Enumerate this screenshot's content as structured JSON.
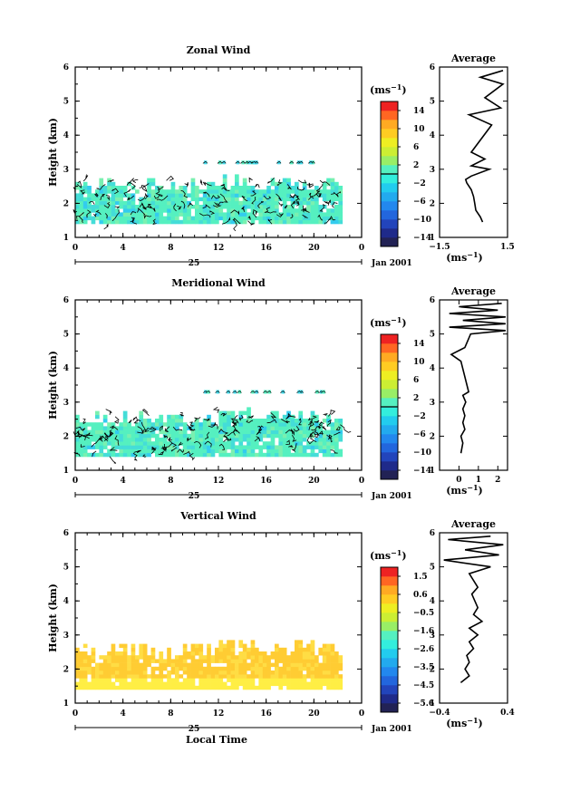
{
  "chart_data": [
    {
      "type": "heatmap",
      "title": "Zonal Wind",
      "ylabel": "Height (km)",
      "xlim": [
        0,
        24
      ],
      "ylim": [
        1,
        6
      ],
      "x_ticks": [
        "0",
        "4",
        "8",
        "12",
        "16",
        "20",
        "0"
      ],
      "y_ticks": [
        "1",
        "2",
        "3",
        "4",
        "5",
        "6"
      ],
      "date_center": "25",
      "date_right": "Jan 2001",
      "colorbar": {
        "unit": "(ms$^{-1}$)",
        "unit_text": "(ms",
        "unit_exp": "−1",
        "labels": [
          "14",
          "10",
          "6",
          "2",
          "−2",
          "−6",
          "−10",
          "−14"
        ],
        "range": [
          -16,
          16
        ],
        "zero_line": 0
      },
      "data_extent": {
        "x": [
          0,
          22.2
        ],
        "height": [
          1.4,
          2.6
        ]
      },
      "sparse_layer": {
        "x": [
          10.5,
          20.5
        ],
        "height": 3.2
      },
      "profile": {
        "title": "Average",
        "xlabel": "(ms$^{-1}$)",
        "xlim": [
          -1.5,
          1.5
        ],
        "x_ticks": [
          "−1.5",
          "1.5"
        ],
        "y_ticks": [
          "1",
          "2",
          "3",
          "4",
          "5",
          "6"
        ],
        "height": [
          1.45,
          1.6,
          1.8,
          2.0,
          2.2,
          2.4,
          2.6,
          2.7,
          2.8,
          3.0,
          3.1,
          3.3,
          3.5,
          4.3,
          4.6,
          4.8,
          5.1,
          5.5,
          5.7,
          5.9
        ],
        "value": [
          0.4,
          0.3,
          0.1,
          0.05,
          0.0,
          -0.1,
          -0.3,
          -0.35,
          -0.1,
          0.7,
          -0.1,
          0.5,
          -0.1,
          0.8,
          -0.2,
          1.2,
          0.5,
          1.3,
          0.3,
          1.3
        ]
      }
    },
    {
      "type": "heatmap",
      "title": "Meridional Wind",
      "ylabel": "Height (km)",
      "xlim": [
        0,
        24
      ],
      "ylim": [
        1,
        6
      ],
      "x_ticks": [
        "0",
        "4",
        "8",
        "12",
        "16",
        "20",
        "0"
      ],
      "y_ticks": [
        "1",
        "2",
        "3",
        "4",
        "5",
        "6"
      ],
      "date_center": "25",
      "date_right": "Jan 2001",
      "colorbar": {
        "unit": "(ms$^{-1}$)",
        "unit_text": "(ms",
        "unit_exp": "−1",
        "labels": [
          "14",
          "10",
          "6",
          "2",
          "−2",
          "−6",
          "−10",
          "−14"
        ],
        "range": [
          -16,
          16
        ],
        "zero_line": 0
      },
      "data_extent": {
        "x": [
          0,
          22.2
        ],
        "height": [
          1.4,
          2.6
        ]
      },
      "sparse_layer": {
        "x": [
          10.5,
          21.0
        ],
        "height": 3.3
      },
      "profile": {
        "title": "Average",
        "xlabel": "(ms$^{-1}$)",
        "xlim": [
          -1,
          2.5
        ],
        "x_ticks": [
          "0",
          "1",
          "2"
        ],
        "y_ticks": [
          "1",
          "2",
          "3",
          "4",
          "5",
          "6"
        ],
        "height": [
          1.5,
          1.8,
          2.0,
          2.2,
          2.4,
          2.6,
          2.8,
          3.0,
          3.2,
          3.3,
          4.2,
          4.4,
          4.6,
          5.0,
          5.1,
          5.2,
          5.3,
          5.4,
          5.5,
          5.6,
          5.7,
          5.8,
          5.9
        ],
        "value": [
          0.1,
          0.2,
          0.1,
          0.3,
          0.2,
          0.3,
          0.2,
          0.35,
          0.2,
          0.5,
          0.1,
          -0.4,
          0.3,
          0.6,
          2.4,
          -0.5,
          2.4,
          0.2,
          2.4,
          -0.5,
          2.0,
          0.0,
          2.2
        ]
      }
    },
    {
      "type": "heatmap",
      "title": "Vertical Wind",
      "ylabel": "Height (km)",
      "xlabel": "Local Time",
      "xlim": [
        0,
        24
      ],
      "ylim": [
        1,
        6
      ],
      "x_ticks": [
        "0",
        "4",
        "8",
        "12",
        "16",
        "20",
        "0"
      ],
      "y_ticks": [
        "1",
        "2",
        "3",
        "4",
        "5",
        "6"
      ],
      "date_center": "25",
      "date_right": "Jan 2001",
      "colorbar": {
        "unit": "(ms$^{-1}$)",
        "unit_text": "(ms",
        "unit_exp": "−1",
        "labels": [
          "1.5",
          "0.6",
          "−0.5",
          "−1.6",
          "−2.6",
          "−3.5",
          "−4.5",
          "−5.6"
        ],
        "range": [
          -6.0,
          2.0
        ]
      },
      "data_extent": {
        "x": [
          0,
          22.2
        ],
        "height": [
          1.4,
          2.6
        ]
      },
      "profile": {
        "title": "Average",
        "xlabel": "(ms$^{-1}$)",
        "xlim": [
          -0.4,
          0.4
        ],
        "x_ticks": [
          "−0.4",
          "0.4"
        ],
        "y_ticks": [
          "1",
          "2",
          "3",
          "4",
          "5",
          "6"
        ],
        "height": [
          1.6,
          1.8,
          2.0,
          2.2,
          2.4,
          2.6,
          2.8,
          3.0,
          3.2,
          3.4,
          3.6,
          3.8,
          4.2,
          4.4,
          4.8,
          5.0,
          5.2,
          5.35,
          5.5,
          5.65,
          5.8,
          5.9
        ],
        "value": [
          -0.15,
          -0.05,
          -0.1,
          -0.05,
          -0.08,
          0.0,
          -0.05,
          0.05,
          -0.05,
          0.1,
          0.0,
          0.05,
          -0.02,
          0.05,
          -0.05,
          0.2,
          -0.35,
          0.3,
          -0.1,
          0.35,
          -0.3,
          0.2
        ]
      }
    }
  ]
}
